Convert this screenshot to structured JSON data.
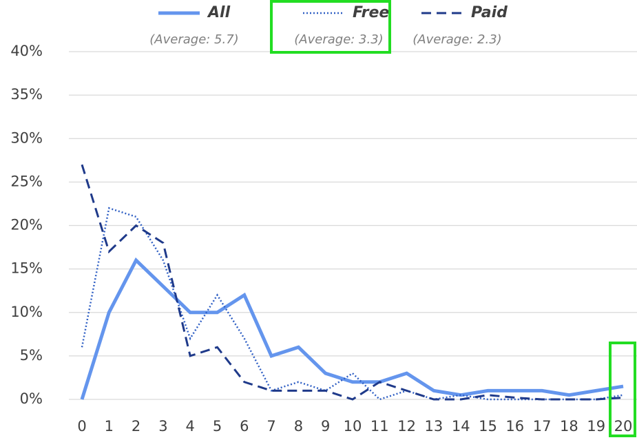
{
  "chart_data": {
    "type": "line",
    "categories": [
      "0",
      "1",
      "2",
      "3",
      "4",
      "5",
      "6",
      "7",
      "8",
      "9",
      "10",
      "11",
      "12",
      "13",
      "14",
      "15",
      "16",
      "17",
      "18",
      "19",
      "20"
    ],
    "series": [
      {
        "name": "All",
        "average_label": "(Average: 5.7)",
        "color": "#6495ed",
        "style": "solid",
        "values": [
          0,
          10,
          16,
          13,
          10,
          10,
          12,
          5,
          6,
          3,
          2,
          2,
          3,
          1,
          0.5,
          1,
          1,
          1,
          0.5,
          1,
          1.5
        ]
      },
      {
        "name": "Free",
        "average_label": "(Average: 3.3)",
        "color": "#2f5fc4",
        "style": "dotted",
        "values": [
          6,
          22,
          21,
          16,
          7,
          12,
          7,
          1,
          2,
          1,
          3,
          0,
          1,
          0,
          0.5,
          0,
          0,
          0,
          0,
          0,
          0.5
        ]
      },
      {
        "name": "Paid",
        "average_label": "(Average: 2.3)",
        "color": "#1f3a8a",
        "style": "dashed",
        "values": [
          27,
          17,
          20,
          18,
          5,
          6,
          2,
          1,
          1,
          1,
          0,
          2,
          1,
          0,
          0,
          0.5,
          0.2,
          0,
          0,
          0,
          0.2
        ]
      }
    ],
    "ylim": [
      0,
      40
    ],
    "yticks": [
      {
        "value": 0,
        "label": "0%"
      },
      {
        "value": 5,
        "label": "5%"
      },
      {
        "value": 10,
        "label": "10%"
      },
      {
        "value": 15,
        "label": "15%"
      },
      {
        "value": 20,
        "label": "20%"
      },
      {
        "value": 25,
        "label": "25%"
      },
      {
        "value": 30,
        "label": "30%"
      },
      {
        "value": 35,
        "label": "35%"
      },
      {
        "value": 40,
        "label": "40%"
      }
    ],
    "grid": true
  }
}
